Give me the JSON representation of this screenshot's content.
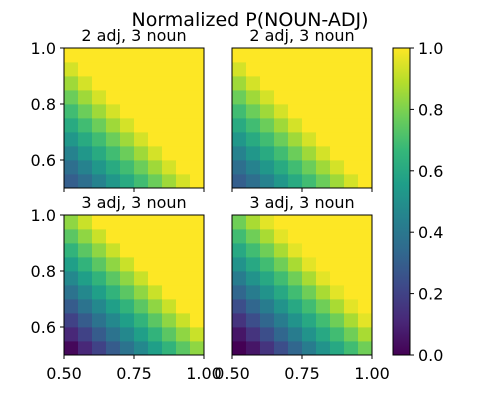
{
  "figure": {
    "title": "Normalized P(NOUN-ADJ)"
  },
  "colors": {
    "background": "#ffffff",
    "axis": "#000000",
    "viridis": [
      "#440154",
      "#482878",
      "#3e4989",
      "#31688e",
      "#26828e",
      "#1f9e89",
      "#35b779",
      "#6ece58",
      "#b5de2b",
      "#fde725"
    ]
  },
  "chart_data": [
    {
      "type": "heatmap",
      "title": "2 adj, 3 noun",
      "grid_size": 10,
      "x_range": [
        0.5,
        1.0
      ],
      "y_range": [
        0.5,
        1.0
      ],
      "xticks": [],
      "yticks": [
        "1.0",
        "0.8",
        "0.6"
      ],
      "clim": [
        0,
        1
      ],
      "pattern": {
        "base": 0.28,
        "slope": 0.082,
        "min": 0.3,
        "max": 1.0
      }
    },
    {
      "type": "heatmap",
      "title": "2 adj, 3 noun",
      "grid_size": 10,
      "x_range": [
        0.5,
        1.0
      ],
      "y_range": [
        0.5,
        1.0
      ],
      "xticks": [],
      "yticks": [],
      "clim": [
        0,
        1
      ],
      "pattern": {
        "base": 0.28,
        "slope": 0.082,
        "min": 0.3,
        "max": 1.0
      }
    },
    {
      "type": "heatmap",
      "title": "3 adj, 3 noun",
      "grid_size": 10,
      "x_range": [
        0.5,
        1.0
      ],
      "y_range": [
        0.5,
        1.0
      ],
      "xticks": [
        "0.50",
        "0.75",
        "1.00"
      ],
      "yticks": [
        "1.0",
        "0.8",
        "0.6"
      ],
      "clim": [
        0,
        1
      ],
      "pattern": {
        "base": 0.02,
        "slope": 0.09,
        "min": 0.0,
        "max": 1.0
      }
    },
    {
      "type": "heatmap",
      "title": "3 adj, 3 noun",
      "grid_size": 10,
      "x_range": [
        0.5,
        1.0
      ],
      "y_range": [
        0.5,
        1.0
      ],
      "xticks": [
        "0.50",
        "0.75",
        "1.00"
      ],
      "yticks": [],
      "clim": [
        0,
        1
      ],
      "pattern": {
        "base": -0.03,
        "slope": 0.09,
        "min": 0.0,
        "max": 1.0
      }
    }
  ],
  "colorbar": {
    "range": [
      0.0,
      1.0
    ],
    "ticks": [
      "0.0",
      "0.2",
      "0.4",
      "0.6",
      "0.8",
      "1.0"
    ]
  }
}
